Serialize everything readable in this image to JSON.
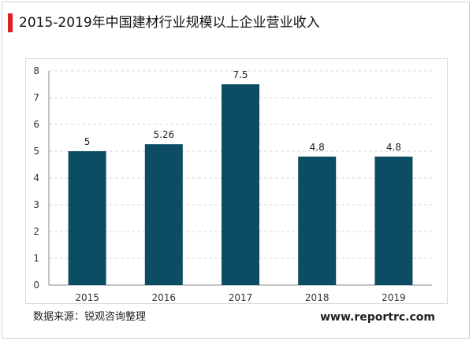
{
  "header": {
    "title": "2015-2019年中国建材行业规模以上企业营业收入"
  },
  "footer": {
    "source": "数据来源：锐观咨询整理",
    "website": "www.reportrc.com"
  },
  "colors": {
    "accent": "#e31e24",
    "bar": "#0c4d63"
  },
  "chart_data": {
    "type": "bar",
    "categories": [
      "2015",
      "2016",
      "2017",
      "2018",
      "2019"
    ],
    "values": [
      5,
      5.26,
      7.5,
      4.8,
      4.8
    ],
    "data_labels": [
      "5",
      "5.26",
      "7.5",
      "4.8",
      "4.8"
    ],
    "ylim": [
      0,
      8
    ],
    "yticks": [
      0,
      1,
      2,
      3,
      4,
      5,
      6,
      7,
      8
    ],
    "grid": true,
    "legend": "none"
  }
}
